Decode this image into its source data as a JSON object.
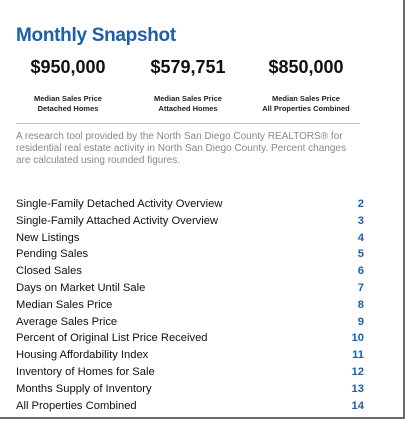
{
  "header": {
    "title": "Monthly Snapshot"
  },
  "snapshot": [
    {
      "value": "$950,000",
      "label": [
        "Median Sales Price",
        "Detached Homes"
      ]
    },
    {
      "value": "$579,751",
      "label": [
        "Median Sales Price",
        "Attached Homes"
      ]
    },
    {
      "value": "$850,000",
      "label": [
        "Median Sales Price",
        "All Properties Combined"
      ]
    }
  ],
  "description": "A research tool provided by the North San Diego County REALTORS® for residential real estate activity in North San Diego County. Percent changes are calculated using rounded figures.",
  "contents": [
    {
      "title": "Single-Family Detached Activity Overview",
      "page": 2
    },
    {
      "title": "Single-Family Attached Activity Overview",
      "page": 3
    },
    {
      "title": "New Listings",
      "page": 4
    },
    {
      "title": "Pending Sales",
      "page": 5
    },
    {
      "title": "Closed Sales",
      "page": 6
    },
    {
      "title": "Days on Market Until Sale",
      "page": 7
    },
    {
      "title": "Median Sales Price",
      "page": 8
    },
    {
      "title": "Average Sales Price",
      "page": 9
    },
    {
      "title": "Percent of Original List Price Received",
      "page": 10
    },
    {
      "title": "Housing Affordability Index",
      "page": 11
    },
    {
      "title": "Inventory of Homes for Sale",
      "page": 12
    },
    {
      "title": "Months Supply of Inventory",
      "page": 13
    },
    {
      "title": "All Properties Combined",
      "page": 14
    }
  ]
}
